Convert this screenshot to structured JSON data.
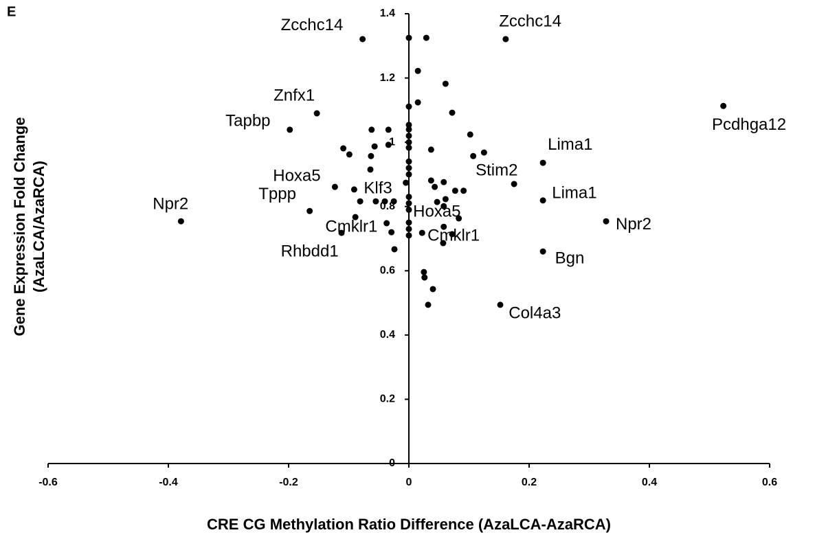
{
  "chart_data": {
    "type": "scatter",
    "panel_label": "E",
    "x_label": "CRE CG Methylation Ratio Difference  (AzaLCA-AzaRCA)",
    "y_label": [
      "Gene Expression Fold Change",
      "(AzaLCA/AzaRCA)"
    ],
    "color": "#000000",
    "x": [
      -0.077,
      0,
      0.029,
      0.161,
      0.015,
      0.061,
      0,
      0.015,
      0.072,
      -0.153,
      -0.198,
      0.523,
      -0.062,
      -0.034,
      0,
      0,
      0,
      0,
      0.102,
      -0.034,
      -0.057,
      -0.109,
      -0.099,
      -0.063,
      0,
      0.037,
      0.107,
      0.125,
      0.223,
      -0.064,
      0,
      0,
      0,
      -0.123,
      -0.091,
      -0.005,
      0.037,
      0.043,
      0.058,
      0.077,
      0.091,
      0.175,
      0.223,
      -0.379,
      -0.165,
      -0.081,
      -0.055,
      -0.04,
      -0.025,
      0,
      0,
      0,
      0.061,
      0.047,
      0.058,
      0.083,
      -0.089,
      -0.037,
      0.328,
      -0.112,
      -0.029,
      0,
      0,
      0,
      0.022,
      0.058,
      0.072,
      0.057,
      -0.024,
      0.223,
      0.025,
      0.026,
      0.04,
      0.032,
      0.152
    ],
    "values": [
      1.321,
      1.325,
      1.325,
      1.321,
      1.222,
      1.182,
      1.111,
      1.124,
      1.092,
      1.09,
      1.039,
      1.113,
      1.039,
      1.039,
      1.054,
      1.04,
      1.02,
      1.0,
      1.024,
      0.992,
      0.987,
      0.981,
      0.962,
      0.957,
      0.983,
      0.977,
      0.957,
      0.968,
      0.936,
      0.915,
      0.94,
      0.92,
      0.9,
      0.861,
      0.853,
      0.874,
      0.881,
      0.861,
      0.876,
      0.849,
      0.849,
      0.87,
      0.819,
      0.754,
      0.786,
      0.816,
      0.816,
      0.816,
      0.816,
      0.83,
      0.81,
      0.79,
      0.823,
      0.814,
      0.801,
      0.763,
      0.767,
      0.748,
      0.754,
      0.718,
      0.72,
      0.75,
      0.73,
      0.71,
      0.718,
      0.737,
      0.714,
      0.686,
      0.667,
      0.66,
      0.596,
      0.579,
      0.543,
      0.494,
      0.494
    ],
    "annotations": [
      {
        "text": "Zcchc14",
        "x": -0.213,
        "y": 1.362
      },
      {
        "text": "Zcchc14",
        "x": 0.15,
        "y": 1.374
      },
      {
        "text": "Znfx1",
        "x": -0.225,
        "y": 1.143
      },
      {
        "text": "Tapbp",
        "x": -0.305,
        "y": 1.064
      },
      {
        "text": "Pcdhga12",
        "x": 0.504,
        "y": 1.052
      },
      {
        "text": "Lima1",
        "x": 0.231,
        "y": 0.99
      },
      {
        "text": "Stim2",
        "x": 0.111,
        "y": 0.91
      },
      {
        "text": "Hoxa5",
        "x": -0.226,
        "y": 0.893
      },
      {
        "text": "Klf3",
        "x": -0.075,
        "y": 0.855
      },
      {
        "text": "Lima1",
        "x": 0.238,
        "y": 0.84
      },
      {
        "text": "Tppp",
        "x": -0.25,
        "y": 0.836
      },
      {
        "text": "Npr2",
        "x": -0.426,
        "y": 0.806
      },
      {
        "text": "Hoxa5",
        "x": 0.007,
        "y": 0.782
      },
      {
        "text": "Npr2",
        "x": 0.344,
        "y": 0.742
      },
      {
        "text": "Cmklr1",
        "x": -0.139,
        "y": 0.735
      },
      {
        "text": "Cmklr1",
        "x": 0.031,
        "y": 0.707
      },
      {
        "text": "Rhbdd1",
        "x": -0.213,
        "y": 0.658
      },
      {
        "text": "Bgn",
        "x": 0.243,
        "y": 0.637
      },
      {
        "text": "Col4a3",
        "x": 0.166,
        "y": 0.466
      }
    ],
    "xlim": [
      -0.6,
      0.6
    ],
    "xticks": [
      -0.6,
      -0.4,
      -0.2,
      0,
      0.2,
      0.4,
      0.6
    ],
    "ylim": [
      0,
      1.4
    ],
    "yticks": [
      0,
      0.2,
      0.4,
      0.6,
      0.8,
      1,
      1.2,
      1.4
    ]
  }
}
